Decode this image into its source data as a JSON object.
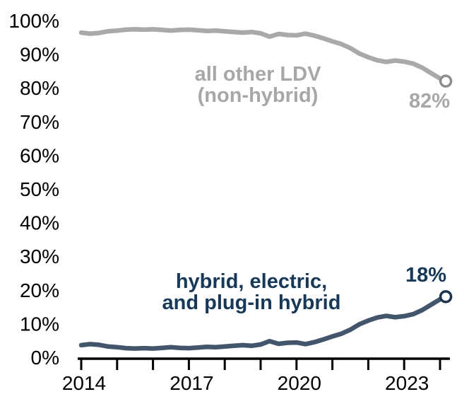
{
  "chart_data": {
    "type": "line",
    "title": "",
    "xlabel": "",
    "ylabel": "",
    "x_unit": "year",
    "y_unit": "percent share",
    "xlim": [
      2014,
      2024.2
    ],
    "ylim": [
      0,
      100
    ],
    "grid": false,
    "legend_position": "inline-labels",
    "y_ticks": [
      0,
      10,
      20,
      30,
      40,
      50,
      60,
      70,
      80,
      90,
      100
    ],
    "y_tick_labels": [
      "0%",
      "10%",
      "20%",
      "30%",
      "40%",
      "50%",
      "60%",
      "70%",
      "80%",
      "90%",
      "100%"
    ],
    "x_ticks": [
      2014,
      2015,
      2016,
      2017,
      2018,
      2019,
      2020,
      2021,
      2022,
      2023,
      2024
    ],
    "x_tick_labels": [
      {
        "value": 2014,
        "label": "2014"
      },
      {
        "value": 2017,
        "label": "2017"
      },
      {
        "value": 2020,
        "label": "2020"
      },
      {
        "value": 2023,
        "label": "2023"
      }
    ],
    "x": [
      2014.0,
      2014.25,
      2014.5,
      2014.75,
      2015.0,
      2015.25,
      2015.5,
      2015.75,
      2016.0,
      2016.25,
      2016.5,
      2016.75,
      2017.0,
      2017.25,
      2017.5,
      2017.75,
      2018.0,
      2018.25,
      2018.5,
      2018.75,
      2019.0,
      2019.25,
      2019.5,
      2019.75,
      2020.0,
      2020.25,
      2020.5,
      2020.75,
      2021.0,
      2021.25,
      2021.5,
      2021.75,
      2022.0,
      2022.25,
      2022.5,
      2022.75,
      2023.0,
      2023.25,
      2023.5,
      2023.75,
      2024.0,
      2024.1
    ],
    "series": [
      {
        "id": "other-ldv",
        "name": "all other LDV (non-hybrid)",
        "color": "#A9A9A9",
        "marker_color": "#8C8C8C",
        "end_label": "82%",
        "values": [
          96.4,
          96.1,
          96.3,
          96.8,
          97.0,
          97.3,
          97.4,
          97.3,
          97.4,
          97.2,
          97.0,
          97.2,
          97.3,
          97.1,
          96.9,
          97.0,
          96.8,
          96.6,
          96.4,
          96.6,
          96.2,
          95.2,
          96.0,
          95.7,
          95.6,
          96.1,
          95.5,
          94.7,
          93.8,
          93.0,
          91.8,
          90.2,
          89.1,
          88.2,
          87.7,
          88.1,
          87.8,
          87.2,
          86.0,
          84.4,
          82.8,
          82.0
        ]
      },
      {
        "id": "hybrid-electric",
        "name": "hybrid, electric, and plug-in hybrid",
        "color": "#41566C",
        "marker_color": "#1A3350",
        "end_label": "18%",
        "values": [
          3.6,
          3.9,
          3.7,
          3.2,
          3.0,
          2.7,
          2.6,
          2.7,
          2.6,
          2.8,
          3.0,
          2.8,
          2.7,
          2.9,
          3.1,
          3.0,
          3.2,
          3.4,
          3.6,
          3.4,
          3.8,
          4.8,
          4.0,
          4.3,
          4.4,
          3.9,
          4.5,
          5.3,
          6.2,
          7.0,
          8.2,
          9.8,
          10.9,
          11.8,
          12.3,
          11.9,
          12.2,
          12.8,
          14.0,
          15.6,
          17.2,
          18.0
        ]
      }
    ],
    "annotations": {
      "other_label_line1": "all other LDV",
      "other_label_line2": "(non-hybrid)",
      "hybrid_label_line1": "hybrid, electric,",
      "hybrid_label_line2": "and plug-in hybrid",
      "other_end_value": "82%",
      "hybrid_end_value": "18%"
    },
    "colors": {
      "axis": "#000000",
      "gray_text": "#A7A7A7",
      "navy_text": "#15395A",
      "background": "#FFFFFF"
    }
  }
}
